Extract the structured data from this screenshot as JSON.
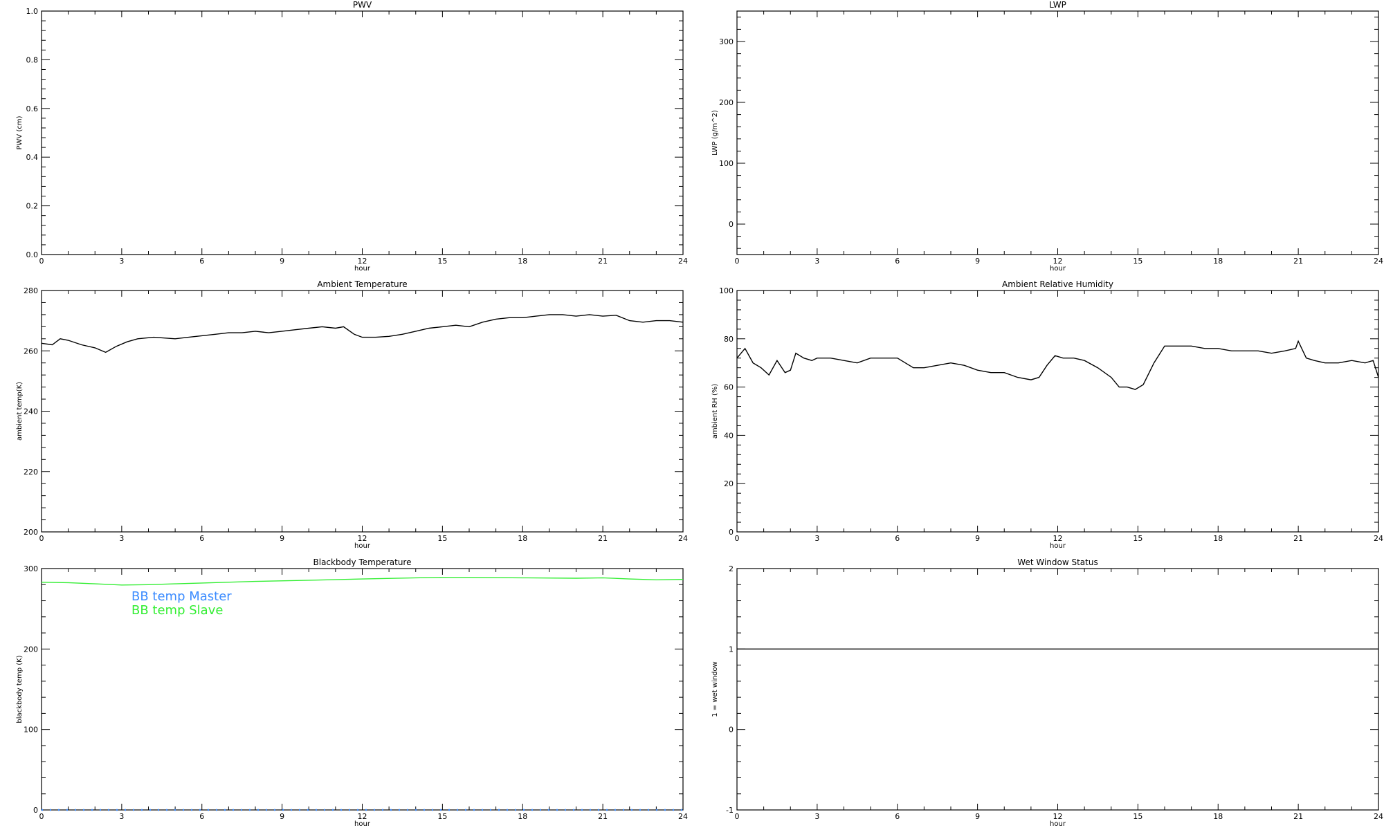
{
  "chart_data": [
    {
      "type": "line",
      "title": "PWV",
      "xlabel": "hour",
      "ylabel": "PWV (cm)",
      "xlim": [
        0,
        24
      ],
      "ylim": [
        0.0,
        1.0
      ],
      "xticks": [
        0,
        3,
        6,
        9,
        12,
        15,
        18,
        21,
        24
      ],
      "yticks": [
        "0.0",
        "0.2",
        "0.4",
        "0.6",
        "0.8",
        "1.0"
      ],
      "series": []
    },
    {
      "type": "line",
      "title": "LWP",
      "xlabel": "hour",
      "ylabel": "LWP (g/m^2)",
      "xlim": [
        0,
        24
      ],
      "ylim": [
        -50,
        350
      ],
      "xticks": [
        0,
        3,
        6,
        9,
        12,
        15,
        18,
        21,
        24
      ],
      "yticks": [
        "0",
        "100",
        "200",
        "300"
      ],
      "series": []
    },
    {
      "type": "line",
      "title": "Ambient Temperature",
      "xlabel": "hour",
      "ylabel": "ambient temp(K)",
      "xlim": [
        0,
        24
      ],
      "ylim": [
        200,
        280
      ],
      "xticks": [
        0,
        3,
        6,
        9,
        12,
        15,
        18,
        21,
        24
      ],
      "yticks": [
        "200",
        "220",
        "240",
        "260",
        "280"
      ],
      "series": [
        {
          "color": "#000000",
          "x": [
            0,
            0.4,
            0.7,
            1.0,
            1.5,
            2.0,
            2.4,
            2.8,
            3.2,
            3.6,
            4.2,
            5.0,
            5.5,
            6.0,
            6.5,
            7.0,
            7.5,
            8.0,
            8.5,
            9.0,
            9.5,
            10.0,
            10.5,
            11.0,
            11.3,
            11.7,
            12.0,
            12.5,
            13.0,
            13.5,
            14.0,
            14.5,
            15.0,
            15.5,
            16.0,
            16.5,
            17.0,
            17.5,
            18.0,
            18.5,
            19.0,
            19.5,
            20.0,
            20.5,
            21.0,
            21.5,
            22.0,
            22.5,
            23.0,
            23.5,
            24.0
          ],
          "y": [
            262.5,
            262.0,
            264.0,
            263.5,
            262.0,
            261.0,
            259.5,
            261.5,
            263.0,
            264.0,
            264.5,
            264.0,
            264.5,
            265.0,
            265.5,
            266.0,
            266.0,
            266.5,
            266.0,
            266.5,
            267.0,
            267.5,
            268.0,
            267.5,
            268.0,
            265.5,
            264.5,
            264.5,
            264.8,
            265.5,
            266.5,
            267.5,
            268.0,
            268.5,
            268.0,
            269.5,
            270.5,
            271.0,
            271.0,
            271.5,
            272.0,
            272.0,
            271.5,
            272.0,
            271.5,
            271.8,
            270.0,
            269.5,
            270.0,
            270.0,
            269.5
          ]
        }
      ]
    },
    {
      "type": "line",
      "title": "Ambient Relative Humidity",
      "xlabel": "hour",
      "ylabel": "ambient RH (%)",
      "xlim": [
        0,
        24
      ],
      "ylim": [
        0,
        100
      ],
      "xticks": [
        0,
        3,
        6,
        9,
        12,
        15,
        18,
        21,
        24
      ],
      "yticks": [
        "0",
        "20",
        "40",
        "60",
        "80",
        "100"
      ],
      "series": [
        {
          "color": "#000000",
          "x": [
            0,
            0.3,
            0.6,
            0.9,
            1.2,
            1.5,
            1.8,
            2.0,
            2.2,
            2.5,
            2.8,
            3.0,
            3.5,
            4.0,
            4.5,
            5.0,
            5.5,
            6.0,
            6.3,
            6.6,
            7.0,
            7.5,
            8.0,
            8.5,
            9.0,
            9.5,
            10.0,
            10.5,
            11.0,
            11.3,
            11.6,
            11.9,
            12.2,
            12.6,
            13.0,
            13.5,
            14.0,
            14.3,
            14.6,
            14.9,
            15.2,
            15.6,
            16.0,
            16.5,
            17.0,
            17.5,
            18.0,
            18.5,
            19.0,
            19.5,
            20.0,
            20.5,
            20.9,
            21.0,
            21.3,
            21.6,
            22.0,
            22.5,
            23.0,
            23.5,
            23.8,
            24.0
          ],
          "y": [
            72,
            76,
            70,
            68,
            65,
            71,
            66,
            67,
            74,
            72,
            71,
            72,
            72,
            71,
            70,
            72,
            72,
            72,
            70,
            68,
            68,
            69,
            70,
            69,
            67,
            66,
            66,
            64,
            63,
            64,
            69,
            73,
            72,
            72,
            71,
            68,
            64,
            60,
            60,
            59,
            61,
            70,
            77,
            77,
            77,
            76,
            76,
            75,
            75,
            75,
            74,
            75,
            76,
            79,
            72,
            71,
            70,
            70,
            71,
            70,
            71,
            64
          ]
        }
      ]
    },
    {
      "type": "line",
      "title": "Blackbody Temperature",
      "xlabel": "hour",
      "ylabel": "blackbody temp (K)",
      "xlim": [
        0,
        24
      ],
      "ylim": [
        0,
        300
      ],
      "xticks": [
        0,
        3,
        6,
        9,
        12,
        15,
        18,
        21,
        24
      ],
      "yticks": [
        "0",
        "100",
        "200",
        "300"
      ],
      "legend_position": "upper-left",
      "series": [
        {
          "name": "BB temp Master",
          "color": "#3c8cff",
          "x": [
            0,
            24
          ],
          "y": [
            0,
            0
          ]
        },
        {
          "name": "BB temp Slave",
          "color": "#33ee33",
          "x": [
            0,
            1,
            2,
            3,
            4,
            5,
            6,
            8,
            10,
            12,
            14,
            15,
            16,
            18,
            20,
            21,
            22,
            23,
            24
          ],
          "y": [
            283,
            282.5,
            281,
            279.5,
            280,
            281,
            282,
            284,
            285.5,
            287,
            288.5,
            289,
            289,
            288.5,
            288,
            288.5,
            287,
            286,
            286.5
          ]
        }
      ]
    },
    {
      "type": "line",
      "title": "Wet Window Status",
      "xlabel": "hour",
      "ylabel": "1 = wet window",
      "xlim": [
        0,
        24
      ],
      "ylim": [
        -1,
        2
      ],
      "xticks": [
        0,
        3,
        6,
        9,
        12,
        15,
        18,
        21,
        24
      ],
      "yticks": [
        "-1",
        "0",
        "1",
        "2"
      ],
      "series": [
        {
          "color": "#000000",
          "x": [
            0,
            24
          ],
          "y": [
            1,
            1
          ]
        }
      ]
    }
  ]
}
